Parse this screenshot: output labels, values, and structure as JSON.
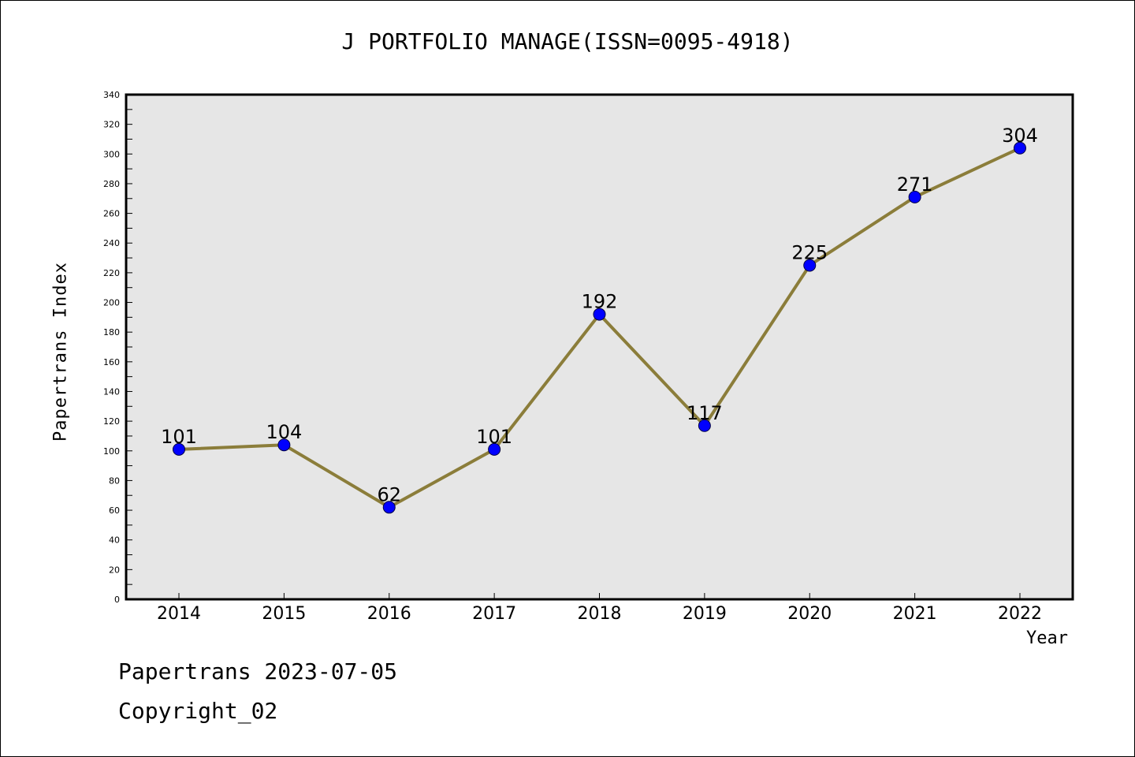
{
  "chart_data": {
    "type": "line",
    "title": "J PORTFOLIO MANAGE(ISSN=0095-4918)",
    "xlabel": "Year",
    "ylabel": "Papertrans Index",
    "categories": [
      "2014",
      "2015",
      "2016",
      "2017",
      "2018",
      "2019",
      "2020",
      "2021",
      "2022"
    ],
    "series": [
      {
        "values": [
          101,
          104,
          62,
          101,
          192,
          117,
          225,
          271,
          304
        ],
        "line_color": "#8b7d3a",
        "marker_color": "#0000ff"
      }
    ],
    "ylim": [
      0,
      340
    ],
    "y_ticks": [
      0,
      20,
      40,
      60,
      80,
      100,
      120,
      140,
      160,
      180,
      200,
      220,
      240,
      260,
      280,
      300,
      320,
      340
    ],
    "grid": false,
    "legend": "none",
    "plot_background": "#e6e6e6"
  },
  "footer": {
    "line1": "Papertrans 2023-07-05",
    "line2": "Copyright_02"
  }
}
